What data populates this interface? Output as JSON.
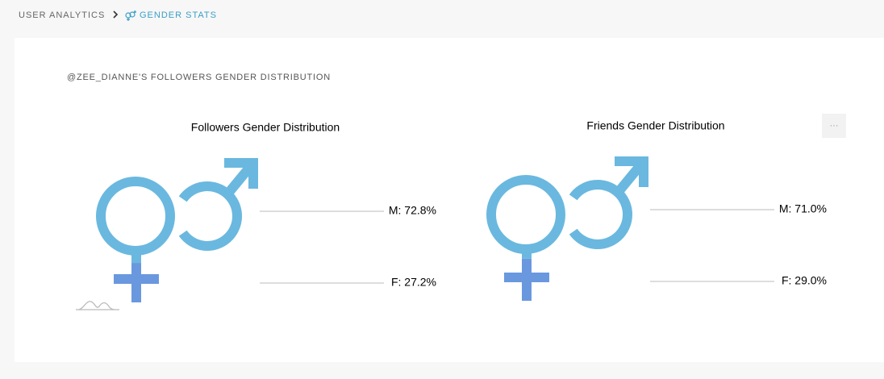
{
  "breadcrumb": {
    "parent": "USER ANALYTICS",
    "current": "GENDER STATS"
  },
  "section_title": "@ZEE_DIANNE'S FOLLOWERS GENDER DISTRIBUTION",
  "menu_button": "···",
  "chart_data": [
    {
      "type": "pictorial",
      "title": "Followers Gender Distribution",
      "values": [
        72.8,
        27.2
      ],
      "value_labels": [
        "M: 72.8%",
        "F: 27.2%"
      ],
      "colors": [
        "#6ab8df",
        "#6a98df"
      ]
    },
    {
      "type": "pictorial",
      "title": "Friends Gender Distribution",
      "values": [
        71.0,
        29.0
      ],
      "value_labels": [
        "M: 71.0%",
        "F: 29.0%"
      ],
      "colors": [
        "#6ab8df",
        "#6a98df"
      ]
    }
  ]
}
